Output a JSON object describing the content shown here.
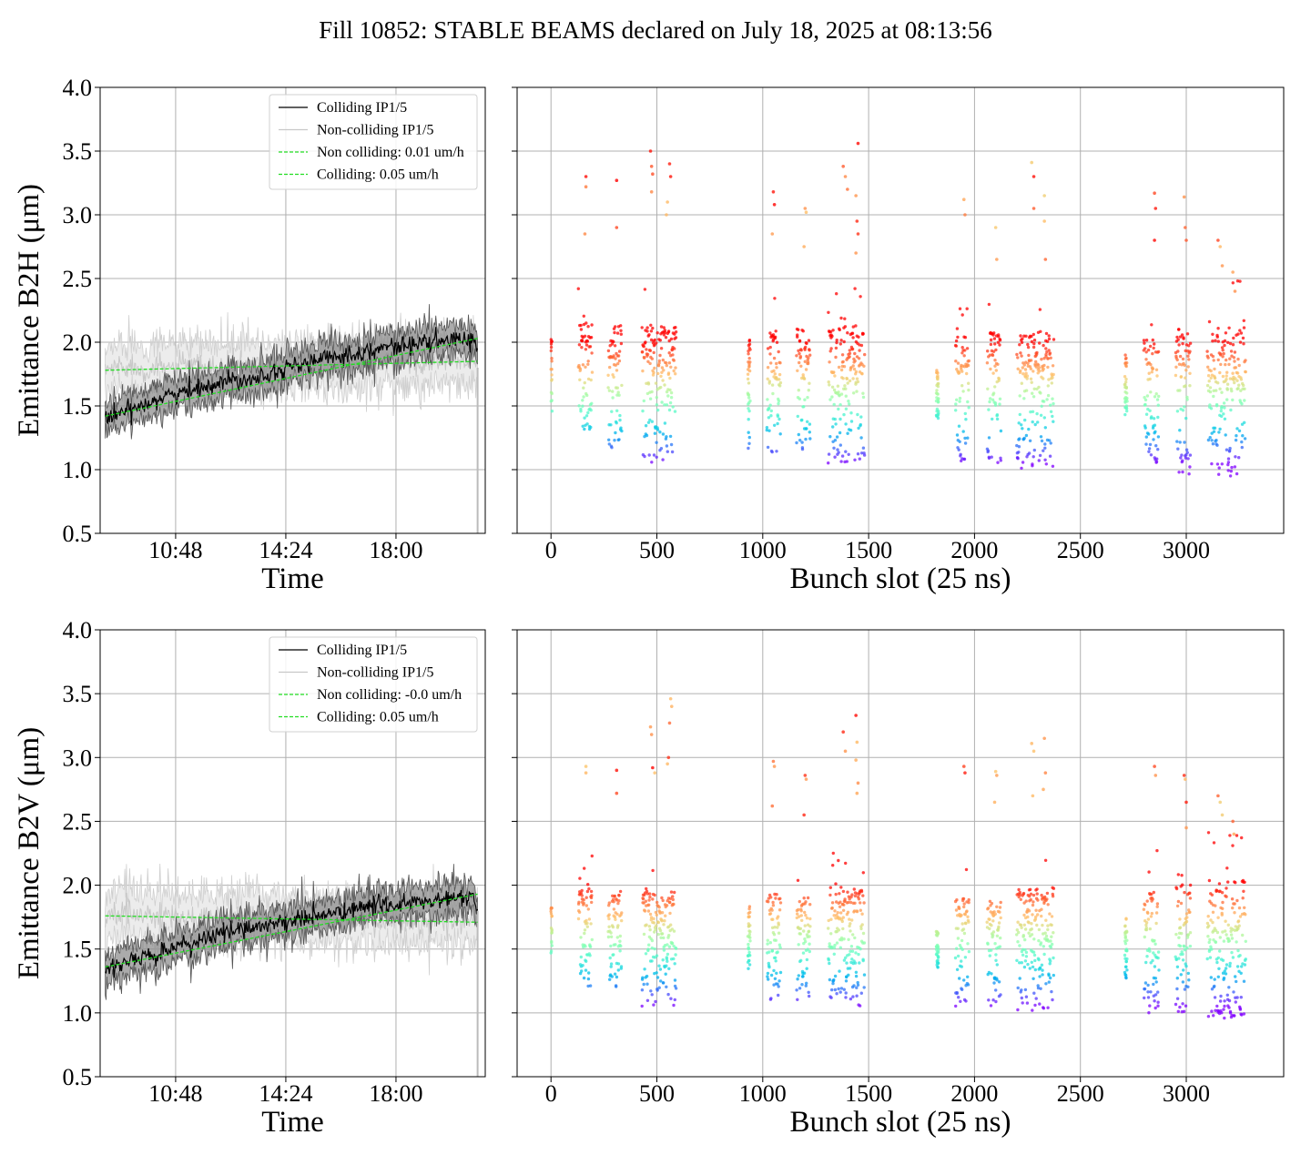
{
  "figure_title": "Fill 10852: STABLE BEAMS declared on July 18, 2025 at 08:13:56",
  "colors": {
    "colliding": "#000000",
    "non_colliding": "#c8c8c8",
    "band_colliding": "#888888",
    "band_non_colliding": "#dcdcdc",
    "fit": "#22dd22",
    "grid": "#b0b0b0"
  },
  "chart_data": [
    {
      "type": "line",
      "panel": "top-left",
      "xlabel": "Time",
      "ylabel": "Emittance B2H (μm)",
      "ylim": [
        0.5,
        4.0
      ],
      "yticks": [
        "0.5",
        "1.0",
        "1.5",
        "2.0",
        "2.5",
        "3.0",
        "3.5",
        "4.0"
      ],
      "xlim": [
        "08:20",
        "20:55"
      ],
      "xticks": [
        "10:48",
        "14:24",
        "18:00"
      ],
      "grid": true,
      "legend_position": "upper-right",
      "series": [
        {
          "name": "Colliding IP1/5",
          "style": "solid",
          "color": "#000000",
          "x": [
            "08:30",
            "09:00",
            "09:30",
            "10:00",
            "10:30",
            "11:00",
            "11:30",
            "12:00",
            "12:30",
            "13:00",
            "13:30",
            "14:00",
            "14:30",
            "15:00",
            "15:30",
            "16:00",
            "16:30",
            "17:00",
            "17:30",
            "18:00",
            "18:30",
            "19:00",
            "19:30",
            "20:00",
            "20:30",
            "20:40"
          ],
          "y": [
            1.4,
            1.44,
            1.49,
            1.54,
            1.58,
            1.6,
            1.64,
            1.67,
            1.7,
            1.71,
            1.73,
            1.77,
            1.8,
            1.83,
            1.86,
            1.89,
            1.9,
            1.93,
            1.95,
            1.97,
            1.98,
            2.0,
            2.0,
            2.02,
            2.03,
            1.95
          ]
        },
        {
          "name": "Non-colliding IP1/5",
          "style": "solid",
          "color": "#c8c8c8",
          "x": [
            "08:30",
            "09:00",
            "09:30",
            "10:00",
            "10:30",
            "11:00",
            "11:30",
            "12:00",
            "12:30",
            "13:00",
            "13:30",
            "14:00",
            "14:30",
            "15:00",
            "15:30",
            "16:00",
            "16:30",
            "17:00",
            "17:30",
            "18:00",
            "18:30",
            "19:00",
            "19:30",
            "20:00",
            "20:30",
            "20:40"
          ],
          "y": [
            1.78,
            1.82,
            1.8,
            1.78,
            1.8,
            1.81,
            1.8,
            1.79,
            1.8,
            1.81,
            1.8,
            1.8,
            1.81,
            1.8,
            1.82,
            1.82,
            1.81,
            1.83,
            1.82,
            1.84,
            1.84,
            1.85,
            1.84,
            1.85,
            1.84,
            1.84
          ]
        },
        {
          "name": "Non colliding: 0.01 um/h",
          "style": "dashed",
          "color": "#22dd22",
          "x": [
            "08:30",
            "20:40"
          ],
          "y": [
            1.78,
            1.85
          ]
        },
        {
          "name": "Colliding: 0.05 um/h",
          "style": "dashed",
          "color": "#22dd22",
          "x": [
            "08:30",
            "20:40"
          ],
          "y": [
            1.42,
            2.03
          ]
        }
      ],
      "legend": [
        "Colliding IP1/5",
        "Non-colliding IP1/5",
        "Non colliding: 0.01 um/h",
        "Colliding: 0.05 um/h"
      ]
    },
    {
      "type": "scatter",
      "panel": "top-right",
      "xlabel": "Bunch slot (25 ns)",
      "ylabel": "",
      "xlim": [
        -160,
        3460
      ],
      "ylim": [
        0.5,
        4.0
      ],
      "xticks": [
        "0",
        "500",
        "1000",
        "1500",
        "2000",
        "2500",
        "3000"
      ],
      "grid": true,
      "colormap": "rainbow (violet = low, red = high)",
      "trains": [
        {
          "slot_start": 0,
          "slot_end": 5,
          "median": 1.85,
          "spread_low": 1.45,
          "spread_high": 2.2
        },
        {
          "slot_start": 130,
          "slot_end": 195,
          "median": 1.8,
          "spread_low": 1.3,
          "spread_high": 2.45
        },
        {
          "slot_start": 270,
          "slot_end": 335,
          "median": 1.8,
          "spread_low": 1.15,
          "spread_high": 2.45
        },
        {
          "slot_start": 430,
          "slot_end": 590,
          "median": 1.75,
          "spread_low": 1.05,
          "spread_high": 2.45
        },
        {
          "slot_start": 930,
          "slot_end": 940,
          "median": 1.7,
          "spread_low": 1.15,
          "spread_high": 2.3
        },
        {
          "slot_start": 1020,
          "slot_end": 1085,
          "median": 1.75,
          "spread_low": 1.1,
          "spread_high": 2.45
        },
        {
          "slot_start": 1160,
          "slot_end": 1225,
          "median": 1.75,
          "spread_low": 1.1,
          "spread_high": 2.4
        },
        {
          "slot_start": 1310,
          "slot_end": 1480,
          "median": 1.75,
          "spread_low": 1.05,
          "spread_high": 2.45
        },
        {
          "slot_start": 1820,
          "slot_end": 1830,
          "median": 1.65,
          "spread_low": 1.4,
          "spread_high": 1.9
        },
        {
          "slot_start": 1910,
          "slot_end": 1975,
          "median": 1.75,
          "spread_low": 1.05,
          "spread_high": 2.3
        },
        {
          "slot_start": 2060,
          "slot_end": 2125,
          "median": 1.75,
          "spread_low": 1.05,
          "spread_high": 2.35
        },
        {
          "slot_start": 2200,
          "slot_end": 2375,
          "median": 1.7,
          "spread_low": 1.0,
          "spread_high": 2.4
        },
        {
          "slot_start": 2710,
          "slot_end": 2720,
          "median": 1.6,
          "spread_low": 1.4,
          "spread_high": 2.15
        },
        {
          "slot_start": 2800,
          "slot_end": 2870,
          "median": 1.7,
          "spread_low": 1.05,
          "spread_high": 2.4
        },
        {
          "slot_start": 2950,
          "slot_end": 3020,
          "median": 1.7,
          "spread_low": 0.95,
          "spread_high": 2.45
        },
        {
          "slot_start": 3100,
          "slot_end": 3280,
          "median": 1.65,
          "spread_low": 0.95,
          "spread_high": 2.5
        }
      ],
      "outliers": [
        [
          165,
          3.3
        ],
        [
          165,
          3.22
        ],
        [
          160,
          2.85
        ],
        [
          310,
          3.27
        ],
        [
          310,
          2.9
        ],
        [
          470,
          3.5
        ],
        [
          475,
          3.38
        ],
        [
          480,
          3.32
        ],
        [
          475,
          3.18
        ],
        [
          560,
          3.4
        ],
        [
          565,
          3.3
        ],
        [
          550,
          3.1
        ],
        [
          545,
          3.0
        ],
        [
          1050,
          3.18
        ],
        [
          1055,
          3.08
        ],
        [
          1045,
          2.85
        ],
        [
          1200,
          3.05
        ],
        [
          1205,
          3.02
        ],
        [
          1195,
          2.75
        ],
        [
          1380,
          3.38
        ],
        [
          1390,
          3.3
        ],
        [
          1400,
          3.2
        ],
        [
          1440,
          3.15
        ],
        [
          1450,
          3.56
        ],
        [
          1445,
          2.95
        ],
        [
          1450,
          2.85
        ],
        [
          1440,
          2.7
        ],
        [
          1950,
          3.12
        ],
        [
          1955,
          3.0
        ],
        [
          2100,
          2.9
        ],
        [
          2105,
          2.65
        ],
        [
          2270,
          3.41
        ],
        [
          2280,
          3.3
        ],
        [
          2280,
          3.05
        ],
        [
          2330,
          3.15
        ],
        [
          2330,
          2.95
        ],
        [
          2335,
          2.65
        ],
        [
          2850,
          3.17
        ],
        [
          2855,
          3.05
        ],
        [
          2850,
          2.8
        ],
        [
          2990,
          3.14
        ],
        [
          2995,
          2.9
        ],
        [
          3000,
          2.8
        ],
        [
          3150,
          2.8
        ],
        [
          3160,
          2.75
        ],
        [
          3170,
          2.6
        ],
        [
          3220,
          2.55
        ],
        [
          3230,
          2.4
        ]
      ]
    },
    {
      "type": "line",
      "panel": "bottom-left",
      "xlabel": "Time",
      "ylabel": "Emittance B2V (μm)",
      "ylim": [
        0.5,
        4.0
      ],
      "yticks": [
        "0.5",
        "1.0",
        "1.5",
        "2.0",
        "2.5",
        "3.0",
        "3.5",
        "4.0"
      ],
      "xlim": [
        "08:20",
        "20:55"
      ],
      "xticks": [
        "10:48",
        "14:24",
        "18:00"
      ],
      "grid": true,
      "legend_position": "upper-right",
      "series": [
        {
          "name": "Colliding IP1/5",
          "style": "solid",
          "color": "#000000",
          "x": [
            "08:30",
            "09:00",
            "09:30",
            "10:00",
            "10:30",
            "11:00",
            "11:30",
            "12:00",
            "12:30",
            "13:00",
            "13:30",
            "14:00",
            "14:30",
            "15:00",
            "15:30",
            "16:00",
            "16:30",
            "17:00",
            "17:30",
            "18:00",
            "18:30",
            "19:00",
            "19:30",
            "20:00",
            "20:30",
            "20:40"
          ],
          "y": [
            1.35,
            1.38,
            1.42,
            1.45,
            1.48,
            1.52,
            1.56,
            1.6,
            1.64,
            1.66,
            1.68,
            1.7,
            1.72,
            1.74,
            1.76,
            1.78,
            1.8,
            1.83,
            1.85,
            1.85,
            1.86,
            1.87,
            1.88,
            1.9,
            1.91,
            1.8
          ]
        },
        {
          "name": "Non-colliding IP1/5",
          "style": "solid",
          "color": "#c8c8c8",
          "x": [
            "08:30",
            "09:00",
            "09:30",
            "10:00",
            "10:30",
            "11:00",
            "11:30",
            "12:00",
            "12:30",
            "13:00",
            "13:30",
            "14:00",
            "14:30",
            "15:00",
            "15:30",
            "16:00",
            "16:30",
            "17:00",
            "17:30",
            "18:00",
            "18:30",
            "19:00",
            "19:30",
            "20:00",
            "20:30",
            "20:40"
          ],
          "y": [
            1.76,
            1.8,
            1.77,
            1.75,
            1.76,
            1.74,
            1.75,
            1.76,
            1.74,
            1.74,
            1.75,
            1.74,
            1.73,
            1.74,
            1.73,
            1.73,
            1.72,
            1.73,
            1.72,
            1.72,
            1.71,
            1.72,
            1.71,
            1.71,
            1.72,
            1.7
          ]
        },
        {
          "name": "Non colliding: -0.0 um/h",
          "style": "dashed",
          "color": "#22dd22",
          "x": [
            "08:30",
            "20:40"
          ],
          "y": [
            1.76,
            1.71
          ]
        },
        {
          "name": "Colliding: 0.05 um/h",
          "style": "dashed",
          "color": "#22dd22",
          "x": [
            "08:30",
            "20:40"
          ],
          "y": [
            1.36,
            1.93
          ]
        }
      ],
      "legend": [
        "Colliding IP1/5",
        "Non-colliding IP1/5",
        "Non colliding: -0.0 um/h",
        "Colliding: 0.05 um/h"
      ]
    },
    {
      "type": "scatter",
      "panel": "bottom-right",
      "xlabel": "Bunch slot (25 ns)",
      "ylabel": "",
      "xlim": [
        -160,
        3460
      ],
      "ylim": [
        0.5,
        4.0
      ],
      "xticks": [
        "0",
        "500",
        "1000",
        "1500",
        "2000",
        "2500",
        "3000"
      ],
      "grid": true,
      "colormap": "rainbow (violet = low, red = high)",
      "trains": [
        {
          "slot_start": 0,
          "slot_end": 5,
          "median": 1.7,
          "spread_low": 1.4,
          "spread_high": 2.15
        },
        {
          "slot_start": 130,
          "slot_end": 195,
          "median": 1.65,
          "spread_low": 1.2,
          "spread_high": 2.25
        },
        {
          "slot_start": 270,
          "slot_end": 335,
          "median": 1.65,
          "spread_low": 1.2,
          "spread_high": 2.2
        },
        {
          "slot_start": 430,
          "slot_end": 590,
          "median": 1.6,
          "spread_low": 1.05,
          "spread_high": 2.25
        },
        {
          "slot_start": 930,
          "slot_end": 940,
          "median": 1.6,
          "spread_low": 1.3,
          "spread_high": 2.05
        },
        {
          "slot_start": 1020,
          "slot_end": 1085,
          "median": 1.6,
          "spread_low": 1.1,
          "spread_high": 2.2
        },
        {
          "slot_start": 1160,
          "slot_end": 1225,
          "median": 1.6,
          "spread_low": 1.1,
          "spread_high": 2.15
        },
        {
          "slot_start": 1310,
          "slot_end": 1480,
          "median": 1.6,
          "spread_low": 1.05,
          "spread_high": 2.3
        },
        {
          "slot_start": 1820,
          "slot_end": 1830,
          "median": 1.5,
          "spread_low": 1.35,
          "spread_high": 1.75
        },
        {
          "slot_start": 1910,
          "slot_end": 1975,
          "median": 1.6,
          "spread_low": 1.05,
          "spread_high": 2.15
        },
        {
          "slot_start": 2060,
          "slot_end": 2125,
          "median": 1.6,
          "spread_low": 1.05,
          "spread_high": 2.1
        },
        {
          "slot_start": 2200,
          "slot_end": 2375,
          "median": 1.6,
          "spread_low": 1.0,
          "spread_high": 2.3
        },
        {
          "slot_start": 2710,
          "slot_end": 2720,
          "median": 1.5,
          "spread_low": 1.25,
          "spread_high": 1.95
        },
        {
          "slot_start": 2800,
          "slot_end": 2870,
          "median": 1.55,
          "spread_low": 1.0,
          "spread_high": 2.35
        },
        {
          "slot_start": 2950,
          "slot_end": 3020,
          "median": 1.55,
          "spread_low": 1.0,
          "spread_high": 2.4
        },
        {
          "slot_start": 3100,
          "slot_end": 3280,
          "median": 1.55,
          "spread_low": 0.95,
          "spread_high": 2.45
        }
      ],
      "outliers": [
        [
          165,
          2.93
        ],
        [
          165,
          2.88
        ],
        [
          310,
          2.9
        ],
        [
          310,
          2.72
        ],
        [
          470,
          3.24
        ],
        [
          475,
          3.18
        ],
        [
          480,
          2.92
        ],
        [
          490,
          2.88
        ],
        [
          565,
          3.46
        ],
        [
          570,
          3.4
        ],
        [
          560,
          3.27
        ],
        [
          555,
          3.0
        ],
        [
          550,
          2.95
        ],
        [
          1050,
          2.97
        ],
        [
          1055,
          2.93
        ],
        [
          1045,
          2.62
        ],
        [
          1200,
          2.86
        ],
        [
          1205,
          2.83
        ],
        [
          1195,
          2.55
        ],
        [
          1380,
          3.2
        ],
        [
          1390,
          3.05
        ],
        [
          1440,
          3.33
        ],
        [
          1445,
          3.12
        ],
        [
          1440,
          2.98
        ],
        [
          1450,
          2.8
        ],
        [
          1445,
          2.72
        ],
        [
          1950,
          2.93
        ],
        [
          1955,
          2.88
        ],
        [
          2100,
          2.89
        ],
        [
          2105,
          2.86
        ],
        [
          2095,
          2.65
        ],
        [
          2270,
          3.11
        ],
        [
          2280,
          3.05
        ],
        [
          2275,
          2.7
        ],
        [
          2330,
          3.15
        ],
        [
          2335,
          2.88
        ],
        [
          2325,
          2.75
        ],
        [
          2850,
          2.93
        ],
        [
          2855,
          2.86
        ],
        [
          2990,
          2.86
        ],
        [
          2995,
          2.83
        ],
        [
          3000,
          2.65
        ],
        [
          3000,
          2.45
        ],
        [
          3150,
          2.7
        ],
        [
          3160,
          2.65
        ],
        [
          3170,
          2.55
        ],
        [
          3220,
          2.5
        ],
        [
          3225,
          2.4
        ]
      ]
    }
  ]
}
